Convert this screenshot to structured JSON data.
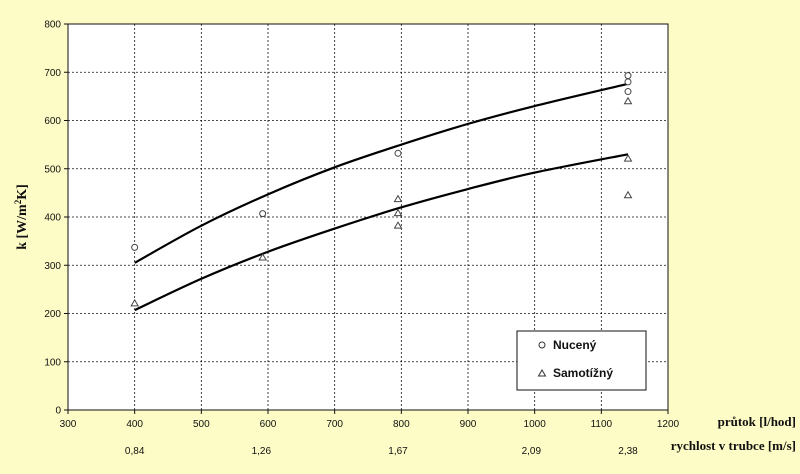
{
  "chart_data": {
    "type": "scatter",
    "ylabel": "k [W/m²K]",
    "xlabel": "průtok [l/hod]",
    "x2label": "rychlost v trubce [m/s]",
    "xlim": [
      300,
      1200
    ],
    "ylim": [
      0,
      800
    ],
    "xticks": [
      300,
      400,
      500,
      600,
      700,
      800,
      900,
      1000,
      1100,
      1200
    ],
    "yticks": [
      0,
      100,
      200,
      300,
      400,
      500,
      600,
      700,
      800
    ],
    "x2ticks": [
      {
        "x": 400,
        "label": "0,84"
      },
      {
        "x": 590,
        "label": "1,26"
      },
      {
        "x": 795,
        "label": "1,67"
      },
      {
        "x": 995,
        "label": "2,09"
      },
      {
        "x": 1140,
        "label": "2,38"
      }
    ],
    "grid": true,
    "legend_position": "bottom-right",
    "series": [
      {
        "name": "Nucený",
        "marker": "circle",
        "points": [
          [
            400,
            337
          ],
          [
            592,
            407
          ],
          [
            795,
            532
          ],
          [
            1140,
            693
          ],
          [
            1140,
            680
          ],
          [
            1140,
            660
          ]
        ],
        "trend": [
          [
            400,
            305
          ],
          [
            500,
            382
          ],
          [
            600,
            447
          ],
          [
            700,
            503
          ],
          [
            800,
            550
          ],
          [
            900,
            593
          ],
          [
            1000,
            630
          ],
          [
            1140,
            676
          ]
        ]
      },
      {
        "name": "Samotížný",
        "marker": "triangle",
        "points": [
          [
            400,
            221
          ],
          [
            592,
            316
          ],
          [
            795,
            437
          ],
          [
            795,
            408
          ],
          [
            795,
            382
          ],
          [
            1140,
            640
          ],
          [
            1140,
            521
          ],
          [
            1140,
            445
          ]
        ],
        "trend": [
          [
            400,
            207
          ],
          [
            500,
            272
          ],
          [
            600,
            328
          ],
          [
            700,
            376
          ],
          [
            800,
            420
          ],
          [
            900,
            458
          ],
          [
            1000,
            492
          ],
          [
            1140,
            530
          ]
        ]
      }
    ]
  }
}
